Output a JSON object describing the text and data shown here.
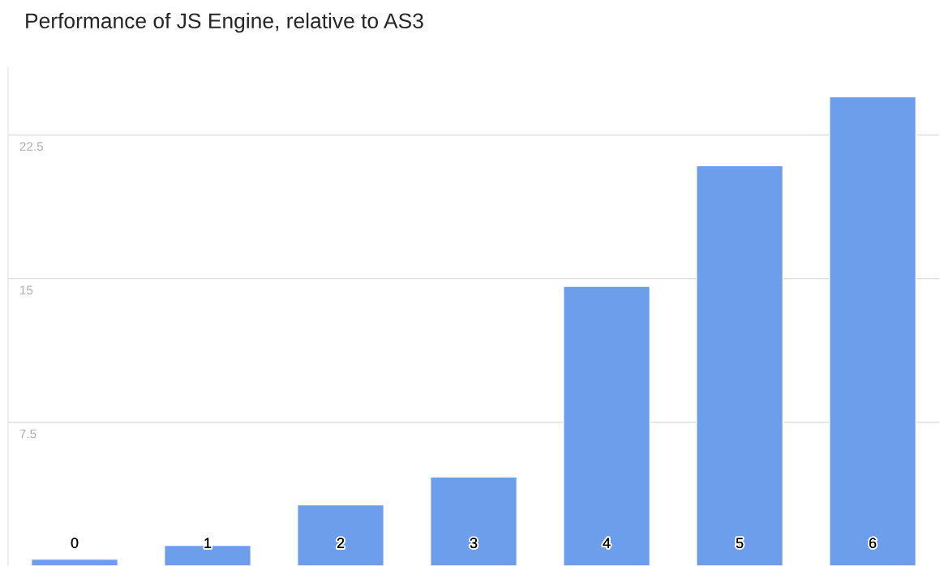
{
  "chart_data": {
    "type": "bar",
    "title": "Performance of JS Engine, relative to AS3",
    "categories": [
      "0",
      "1",
      "2",
      "3",
      "4",
      "5",
      "6"
    ],
    "values": [
      0.36,
      1.08,
      3.19,
      4.65,
      14.6,
      20.9,
      24.5
    ],
    "color": "#6d9eeb",
    "ylim": [
      0,
      26
    ],
    "yticks": [
      7.5,
      15,
      22.5
    ],
    "grid": "y"
  }
}
